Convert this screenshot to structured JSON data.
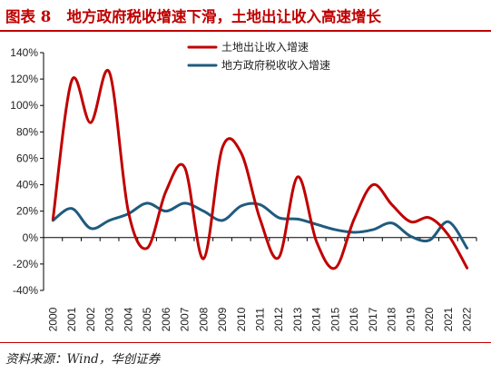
{
  "header": {
    "figure_label": "图表 8",
    "title": "地方政府税收增速下滑，土地出让收入高速增长"
  },
  "footer": {
    "source": "资料来源：Wind，华创证券"
  },
  "chart_data": {
    "type": "line",
    "x": [
      "2000",
      "2001",
      "2002",
      "2003",
      "2004",
      "2005",
      "2006",
      "2007",
      "2008",
      "2009",
      "2010",
      "2011",
      "2012",
      "2013",
      "2014",
      "2015",
      "2016",
      "2017",
      "2018",
      "2019",
      "2020",
      "2021",
      "2022"
    ],
    "ylim": [
      -40,
      140
    ],
    "yticks": [
      "-40%",
      "-20%",
      "0%",
      "20%",
      "40%",
      "60%",
      "80%",
      "100%",
      "120%",
      "140%"
    ],
    "ytick_values": [
      -40,
      -20,
      0,
      20,
      40,
      60,
      80,
      100,
      120,
      140
    ],
    "grid": false,
    "legend_position": "top-center",
    "series": [
      {
        "name": "土地出让收入增速",
        "color": "#c00000",
        "values": [
          14,
          119,
          87,
          125,
          20,
          -8,
          35,
          53,
          -16,
          68,
          64,
          14,
          -15,
          46,
          -3,
          -23,
          14,
          40,
          25,
          12,
          15,
          2,
          -23
        ]
      },
      {
        "name": "地方政府税收收入增速",
        "color": "#1f5b7e",
        "values": [
          13,
          22,
          7,
          13,
          18,
          26,
          20,
          26,
          20,
          13,
          24,
          25,
          15,
          14,
          10,
          6,
          4,
          6,
          11,
          1,
          -2,
          12,
          -8
        ]
      }
    ]
  }
}
